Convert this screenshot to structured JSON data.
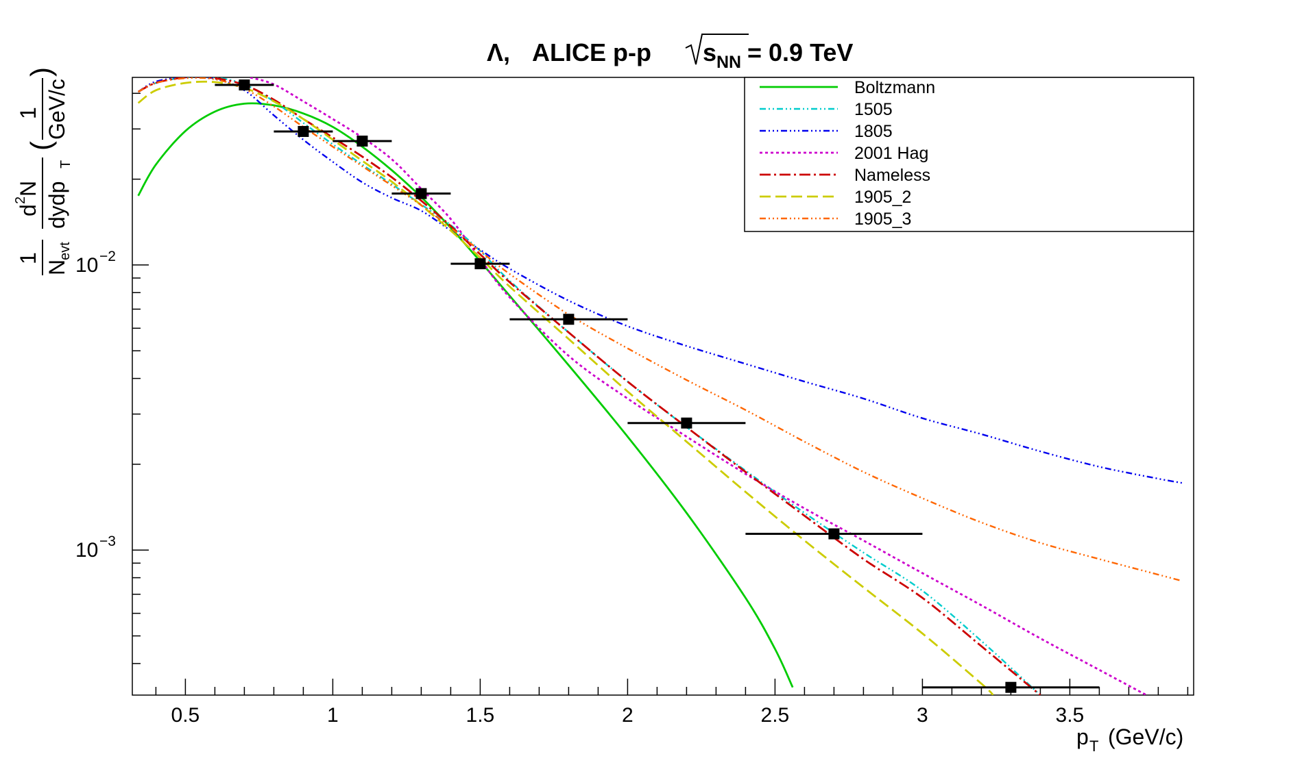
{
  "chart_data": {
    "type": "line",
    "title": {
      "symbol": "Λ,",
      "main": "ALICE p-p",
      "sqrt_var": "s",
      "sqrt_sub": "NN",
      "suffix": "= 0.9 TeV"
    },
    "xlabel": {
      "main": "p",
      "sub": "T",
      "unit": "(GeV/c)"
    },
    "ylabel": {
      "one": "1",
      "nevt": "N",
      "nevt_sub": "evt",
      "d2": "d",
      "d2_sup": "2",
      "N": "N",
      "dyd": "dydp",
      "dyd_sub": "T",
      "unit_one": "1",
      "unit_den": "GeV/c"
    },
    "xlim": [
      0.32,
      3.92
    ],
    "ylim": [
      0.00031,
      0.0455
    ],
    "yscale": "log",
    "grid": false,
    "legend_position": "top-right",
    "x_ticks": [
      "0.5",
      "1",
      "1.5",
      "2",
      "2.5",
      "3",
      "3.5"
    ],
    "y_ticks": [
      {
        "base": "10",
        "exp": "−2",
        "value": 0.01
      },
      {
        "base": "10",
        "exp": "−3",
        "value": 0.001
      }
    ],
    "data_points": [
      {
        "x": 0.7,
        "y": 0.0428,
        "xlo": 0.6,
        "xhi": 0.8
      },
      {
        "x": 0.9,
        "y": 0.0294,
        "xlo": 0.8,
        "xhi": 1.0
      },
      {
        "x": 1.1,
        "y": 0.0272,
        "xlo": 1.0,
        "xhi": 1.2
      },
      {
        "x": 1.3,
        "y": 0.0178,
        "xlo": 1.2,
        "xhi": 1.4
      },
      {
        "x": 1.5,
        "y": 0.0101,
        "xlo": 1.4,
        "xhi": 1.6
      },
      {
        "x": 1.8,
        "y": 0.00645,
        "xlo": 1.6,
        "xhi": 2.0
      },
      {
        "x": 2.2,
        "y": 0.00279,
        "xlo": 2.0,
        "xhi": 2.4
      },
      {
        "x": 2.7,
        "y": 0.00114,
        "xlo": 2.4,
        "xhi": 3.0
      },
      {
        "x": 3.3,
        "y": 0.00033,
        "xlo": 3.0,
        "xhi": 3.6
      }
    ],
    "series": [
      {
        "name": "Boltzmann",
        "color": "#00cc00",
        "dash": "",
        "width": 2.8,
        "points": [
          [
            0.34,
            0.0175
          ],
          [
            0.4,
            0.0225
          ],
          [
            0.5,
            0.0295
          ],
          [
            0.6,
            0.0345
          ],
          [
            0.7,
            0.0368
          ],
          [
            0.8,
            0.0363
          ],
          [
            0.9,
            0.034
          ],
          [
            1.0,
            0.0305
          ],
          [
            1.1,
            0.026
          ],
          [
            1.2,
            0.0215
          ],
          [
            1.3,
            0.0173
          ],
          [
            1.4,
            0.0135
          ],
          [
            1.5,
            0.0103
          ],
          [
            1.6,
            0.0078
          ],
          [
            1.8,
            0.00445
          ],
          [
            2.0,
            0.0025
          ],
          [
            2.2,
            0.00135
          ],
          [
            2.4,
            0.00068
          ],
          [
            2.5,
            0.00045
          ],
          [
            2.56,
            0.00033
          ]
        ]
      },
      {
        "name": "1505",
        "color": "#00cccc",
        "dash": "9,4,2,4,2,4",
        "width": 2.4,
        "points": [
          [
            0.34,
            0.0405
          ],
          [
            0.4,
            0.0435
          ],
          [
            0.5,
            0.0455
          ],
          [
            0.6,
            0.0455
          ],
          [
            0.7,
            0.043
          ],
          [
            0.8,
            0.0375
          ],
          [
            0.9,
            0.0315
          ],
          [
            1.0,
            0.0265
          ],
          [
            1.1,
            0.0225
          ],
          [
            1.2,
            0.0192
          ],
          [
            1.3,
            0.0163
          ],
          [
            1.4,
            0.0138
          ],
          [
            1.5,
            0.0112
          ],
          [
            1.6,
            0.0088
          ],
          [
            1.8,
            0.0058
          ],
          [
            2.0,
            0.0039
          ],
          [
            2.2,
            0.0027
          ],
          [
            2.4,
            0.0019
          ],
          [
            2.6,
            0.00135
          ],
          [
            2.8,
            0.00098
          ],
          [
            3.0,
            0.00072
          ],
          [
            3.2,
            0.00048
          ],
          [
            3.4,
            0.00031
          ]
        ]
      },
      {
        "name": "1805",
        "color": "#0000ee",
        "dash": "9,4,2,4,2,4,2,4",
        "width": 2.4,
        "points": [
          [
            0.34,
            0.0405
          ],
          [
            0.4,
            0.044
          ],
          [
            0.5,
            0.0455
          ],
          [
            0.6,
            0.045
          ],
          [
            0.7,
            0.041
          ],
          [
            0.8,
            0.0335
          ],
          [
            0.9,
            0.0275
          ],
          [
            1.0,
            0.023
          ],
          [
            1.1,
            0.0195
          ],
          [
            1.2,
            0.0172
          ],
          [
            1.3,
            0.0155
          ],
          [
            1.4,
            0.0132
          ],
          [
            1.5,
            0.0113
          ],
          [
            1.6,
            0.0097
          ],
          [
            1.8,
            0.0075
          ],
          [
            2.0,
            0.0061
          ],
          [
            2.2,
            0.0052
          ],
          [
            2.4,
            0.0045
          ],
          [
            2.6,
            0.0039
          ],
          [
            2.8,
            0.0034
          ],
          [
            3.0,
            0.0029
          ],
          [
            3.2,
            0.00255
          ],
          [
            3.4,
            0.00222
          ],
          [
            3.6,
            0.00196
          ],
          [
            3.8,
            0.00178
          ],
          [
            3.88,
            0.00172
          ]
        ]
      },
      {
        "name": "2001 Hag",
        "color": "#cc00cc",
        "dash": "4,4",
        "width": 2.8,
        "points": [
          [
            0.72,
            0.0455
          ],
          [
            0.8,
            0.043
          ],
          [
            0.9,
            0.0375
          ],
          [
            1.0,
            0.0325
          ],
          [
            1.1,
            0.028
          ],
          [
            1.2,
            0.0235
          ],
          [
            1.3,
            0.0185
          ],
          [
            1.4,
            0.0145
          ],
          [
            1.5,
            0.0105
          ],
          [
            1.6,
            0.0077
          ],
          [
            1.8,
            0.0048
          ],
          [
            2.0,
            0.0034
          ],
          [
            2.2,
            0.0025
          ],
          [
            2.4,
            0.00185
          ],
          [
            2.6,
            0.0014
          ],
          [
            2.8,
            0.00108
          ],
          [
            3.0,
            0.00083
          ],
          [
            3.2,
            0.00064
          ],
          [
            3.4,
            0.00049
          ],
          [
            3.6,
            0.00038
          ],
          [
            3.76,
            0.00031
          ]
        ]
      },
      {
        "name": "Nameless",
        "color": "#cc0000",
        "dash": "16,5,3,5",
        "width": 2.8,
        "points": [
          [
            0.34,
            0.0405
          ],
          [
            0.4,
            0.0435
          ],
          [
            0.5,
            0.0455
          ],
          [
            0.6,
            0.0452
          ],
          [
            0.7,
            0.0428
          ],
          [
            0.8,
            0.038
          ],
          [
            0.9,
            0.0325
          ],
          [
            1.0,
            0.028
          ],
          [
            1.1,
            0.024
          ],
          [
            1.2,
            0.0203
          ],
          [
            1.3,
            0.0168
          ],
          [
            1.4,
            0.0137
          ],
          [
            1.5,
            0.0109
          ],
          [
            1.6,
            0.0087
          ],
          [
            1.8,
            0.0058
          ],
          [
            2.0,
            0.0039
          ],
          [
            2.2,
            0.0027
          ],
          [
            2.4,
            0.00188
          ],
          [
            2.6,
            0.00132
          ],
          [
            2.8,
            0.00093
          ],
          [
            3.0,
            0.00068
          ],
          [
            3.2,
            0.00046
          ],
          [
            3.4,
            0.00031
          ]
        ]
      },
      {
        "name": "1905_2",
        "color": "#cccc00",
        "dash": "16,7",
        "width": 2.8,
        "points": [
          [
            0.34,
            0.037
          ],
          [
            0.4,
            0.041
          ],
          [
            0.5,
            0.0435
          ],
          [
            0.6,
            0.0438
          ],
          [
            0.7,
            0.0418
          ],
          [
            0.8,
            0.0375
          ],
          [
            0.9,
            0.0325
          ],
          [
            1.0,
            0.0275
          ],
          [
            1.1,
            0.0232
          ],
          [
            1.2,
            0.0196
          ],
          [
            1.3,
            0.0162
          ],
          [
            1.4,
            0.0132
          ],
          [
            1.5,
            0.0106
          ],
          [
            1.6,
            0.0084
          ],
          [
            1.8,
            0.0055
          ],
          [
            2.0,
            0.0036
          ],
          [
            2.2,
            0.0024
          ],
          [
            2.4,
            0.0016
          ],
          [
            2.6,
            0.00108
          ],
          [
            2.8,
            0.00074
          ],
          [
            3.0,
            0.00051
          ],
          [
            3.2,
            0.00034
          ],
          [
            3.24,
            0.00031
          ]
        ]
      },
      {
        "name": "1905_3",
        "color": "#ff6600",
        "dash": "9,4,2,4,2,4,2,4",
        "width": 2.4,
        "points": [
          [
            0.34,
            0.0405
          ],
          [
            0.4,
            0.0435
          ],
          [
            0.5,
            0.0452
          ],
          [
            0.6,
            0.0448
          ],
          [
            0.7,
            0.0415
          ],
          [
            0.8,
            0.036
          ],
          [
            0.9,
            0.0305
          ],
          [
            1.0,
            0.026
          ],
          [
            1.1,
            0.0222
          ],
          [
            1.2,
            0.019
          ],
          [
            1.3,
            0.0162
          ],
          [
            1.4,
            0.0135
          ],
          [
            1.5,
            0.0112
          ],
          [
            1.6,
            0.0093
          ],
          [
            1.8,
            0.0067
          ],
          [
            2.0,
            0.0051
          ],
          [
            2.2,
            0.00395
          ],
          [
            2.4,
            0.0031
          ],
          [
            2.6,
            0.0024
          ],
          [
            2.8,
            0.00188
          ],
          [
            3.0,
            0.00152
          ],
          [
            3.2,
            0.00125
          ],
          [
            3.4,
            0.00106
          ],
          [
            3.6,
            0.00093
          ],
          [
            3.8,
            0.00082
          ],
          [
            3.88,
            0.00078
          ]
        ]
      }
    ]
  }
}
